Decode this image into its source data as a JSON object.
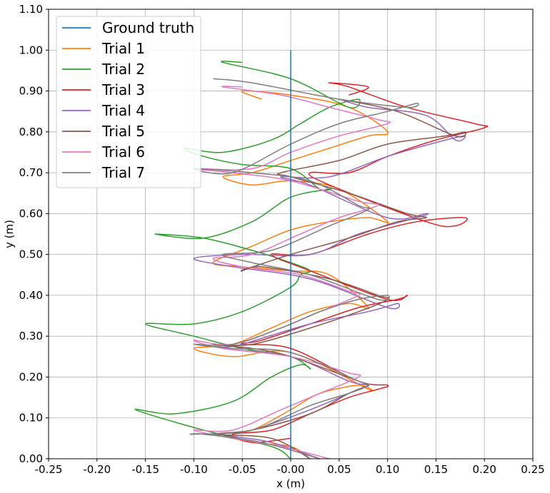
{
  "chart_data": {
    "type": "line",
    "title": "",
    "xlabel": "x (m)",
    "ylabel": "y (m)",
    "xlim": [
      -0.25,
      0.25
    ],
    "ylim": [
      0.0,
      1.1
    ],
    "xticks": [
      "-0.25",
      "-0.20",
      "-0.15",
      "-0.10",
      "-0.05",
      "-0.00",
      "0.05",
      "0.10",
      "0.15",
      "0.20",
      "0.25"
    ],
    "yticks": [
      "0.00",
      "0.10",
      "0.20",
      "0.30",
      "0.40",
      "0.50",
      "0.60",
      "0.70",
      "0.80",
      "0.90",
      "1.00",
      "1.10"
    ],
    "grid": true,
    "legend_position": "upper-left",
    "series": [
      {
        "name": "Ground truth",
        "color": "#1f77b4",
        "x": [
          0.0,
          0.0
        ],
        "y": [
          0.0,
          1.0
        ]
      },
      {
        "name": "Trial 1",
        "color": "#ff7f0e",
        "x": [
          0.02,
          0.0,
          -0.04,
          -0.07,
          -0.04,
          0.0,
          0.03,
          0.07,
          0.08,
          0.0,
          -0.06,
          -0.1,
          -0.06,
          -0.02,
          0.02,
          0.06,
          0.08,
          0.04,
          0.0,
          -0.05,
          -0.08,
          -0.04,
          0.0,
          0.04,
          0.08,
          0.1,
          0.05,
          0.0,
          -0.04,
          -0.07,
          -0.04,
          0.0,
          0.04,
          0.08,
          0.1,
          0.06,
          0.0,
          -0.05,
          -0.03
        ],
        "y": [
          0.0,
          0.03,
          0.04,
          0.06,
          0.07,
          0.12,
          0.16,
          0.18,
          0.17,
          0.26,
          0.25,
          0.27,
          0.28,
          0.32,
          0.36,
          0.38,
          0.37,
          0.45,
          0.46,
          0.47,
          0.48,
          0.52,
          0.56,
          0.58,
          0.59,
          0.58,
          0.66,
          0.68,
          0.67,
          0.69,
          0.7,
          0.73,
          0.76,
          0.79,
          0.8,
          0.86,
          0.89,
          0.9,
          0.88
        ]
      },
      {
        "name": "Trial 2",
        "color": "#2ca02c",
        "x": [
          0.0,
          -0.02,
          -0.09,
          -0.16,
          -0.12,
          -0.06,
          -0.02,
          0.01,
          0.02,
          0.0,
          -0.05,
          -0.1,
          -0.15,
          -0.1,
          -0.05,
          0.0,
          0.01,
          0.02,
          0.0,
          -0.04,
          -0.09,
          -0.14,
          -0.09,
          -0.04,
          0.0,
          0.04,
          0.03,
          0.0,
          -0.05,
          -0.09,
          -0.11,
          -0.07,
          -0.02,
          0.01,
          0.04,
          0.07,
          0.06,
          0.0,
          -0.07,
          -0.05
        ],
        "y": [
          0.0,
          0.03,
          0.07,
          0.12,
          0.11,
          0.14,
          0.2,
          0.23,
          0.22,
          0.25,
          0.27,
          0.3,
          0.33,
          0.33,
          0.36,
          0.42,
          0.45,
          0.46,
          0.48,
          0.51,
          0.54,
          0.55,
          0.54,
          0.58,
          0.64,
          0.66,
          0.66,
          0.71,
          0.72,
          0.74,
          0.76,
          0.75,
          0.78,
          0.82,
          0.86,
          0.88,
          0.86,
          0.93,
          0.97,
          0.97
        ]
      },
      {
        "name": "Trial 3",
        "color": "#d62728",
        "x": [
          0.0,
          -0.04,
          -0.06,
          -0.02,
          0.02,
          0.06,
          0.09,
          0.1,
          0.07,
          0.0,
          -0.05,
          -0.03,
          0.02,
          0.07,
          0.11,
          0.12,
          0.1,
          0.02,
          -0.02,
          0.02,
          0.08,
          0.13,
          0.18,
          0.17,
          0.14,
          0.04,
          0.02,
          0.06,
          0.1,
          0.15,
          0.2,
          0.19,
          0.12,
          0.06,
          0.04,
          0.08,
          0.06
        ],
        "y": [
          0.05,
          0.04,
          0.06,
          0.07,
          0.11,
          0.15,
          0.17,
          0.18,
          0.19,
          0.27,
          0.28,
          0.29,
          0.33,
          0.37,
          0.39,
          0.4,
          0.39,
          0.46,
          0.5,
          0.5,
          0.55,
          0.58,
          0.59,
          0.57,
          0.58,
          0.67,
          0.7,
          0.7,
          0.74,
          0.78,
          0.81,
          0.82,
          0.86,
          0.91,
          0.92,
          0.91,
          0.89
        ]
      },
      {
        "name": "Trial 4",
        "color": "#9467bd",
        "x": [
          0.03,
          -0.02,
          -0.07,
          -0.04,
          0.02,
          0.07,
          0.08,
          0.06,
          0.0,
          -0.07,
          -0.05,
          0.02,
          0.08,
          0.11,
          0.1,
          0.02,
          -0.06,
          -0.1,
          -0.05,
          0.02,
          0.07,
          0.13,
          0.14,
          0.1,
          0.02,
          -0.01,
          0.04,
          0.1,
          0.16,
          0.18,
          0.17,
          0.14,
          0.08,
          0.05
        ],
        "y": [
          0.0,
          0.04,
          0.06,
          0.07,
          0.12,
          0.17,
          0.18,
          0.19,
          0.25,
          0.27,
          0.28,
          0.33,
          0.36,
          0.38,
          0.37,
          0.44,
          0.47,
          0.49,
          0.5,
          0.5,
          0.55,
          0.59,
          0.6,
          0.59,
          0.67,
          0.69,
          0.69,
          0.74,
          0.78,
          0.79,
          0.78,
          0.84,
          0.86,
          0.88
        ]
      },
      {
        "name": "Trial 5",
        "color": "#8c564b",
        "x": [
          0.02,
          -0.02,
          -0.08,
          -0.04,
          0.02,
          0.06,
          0.08,
          0.07,
          0.0,
          -0.04,
          -0.08,
          -0.04,
          0.02,
          0.07,
          0.1,
          0.09,
          0.04,
          -0.03,
          -0.05,
          0.0,
          0.06,
          0.11,
          0.14,
          0.12,
          0.06,
          0.0,
          -0.01,
          0.05,
          0.1,
          0.16,
          0.18,
          0.17,
          0.11,
          0.05
        ],
        "y": [
          0.0,
          0.05,
          0.06,
          0.07,
          0.11,
          0.16,
          0.18,
          0.19,
          0.25,
          0.27,
          0.28,
          0.28,
          0.32,
          0.36,
          0.39,
          0.4,
          0.44,
          0.47,
          0.46,
          0.5,
          0.54,
          0.58,
          0.59,
          0.6,
          0.65,
          0.69,
          0.7,
          0.73,
          0.77,
          0.79,
          0.8,
          0.79,
          0.85,
          0.88
        ]
      },
      {
        "name": "Trial 6",
        "color": "#e377c2",
        "x": [
          0.04,
          -0.01,
          -0.06,
          -0.1,
          -0.06,
          -0.01,
          0.03,
          0.07,
          0.06,
          0.0,
          -0.07,
          -0.1,
          -0.06,
          -0.01,
          0.03,
          0.07,
          0.06,
          0.01,
          -0.05,
          -0.08,
          -0.04,
          0.01,
          0.05,
          0.09,
          0.07,
          0.0,
          -0.06,
          -0.1,
          -0.04,
          0.0,
          0.05,
          0.1,
          0.09,
          0.04,
          -0.01,
          -0.07,
          -0.05
        ],
        "y": [
          0.0,
          0.03,
          0.05,
          0.07,
          0.07,
          0.12,
          0.16,
          0.2,
          0.21,
          0.25,
          0.27,
          0.29,
          0.28,
          0.32,
          0.36,
          0.4,
          0.41,
          0.45,
          0.47,
          0.49,
          0.5,
          0.55,
          0.59,
          0.62,
          0.63,
          0.68,
          0.7,
          0.71,
          0.71,
          0.75,
          0.79,
          0.82,
          0.83,
          0.86,
          0.89,
          0.91,
          0.91
        ]
      },
      {
        "name": "Trial 7",
        "color": "#7f7f7f",
        "x": [
          0.03,
          -0.03,
          -0.09,
          -0.1,
          -0.04,
          0.02,
          0.06,
          0.08,
          0.07,
          0.0,
          -0.06,
          -0.1,
          -0.06,
          -0.01,
          0.03,
          0.07,
          0.1,
          0.09,
          0.02,
          -0.04,
          -0.07,
          -0.02,
          0.04,
          0.08,
          0.07,
          0.02,
          -0.04,
          -0.1,
          -0.06,
          0.0,
          0.05,
          0.1,
          0.13,
          0.12,
          0.05,
          -0.04,
          -0.08
        ],
        "y": [
          0.0,
          0.04,
          0.06,
          0.06,
          0.07,
          0.13,
          0.16,
          0.18,
          0.19,
          0.26,
          0.27,
          0.28,
          0.28,
          0.32,
          0.36,
          0.39,
          0.4,
          0.39,
          0.45,
          0.48,
          0.5,
          0.51,
          0.57,
          0.61,
          0.62,
          0.68,
          0.7,
          0.71,
          0.7,
          0.77,
          0.82,
          0.85,
          0.87,
          0.86,
          0.88,
          0.92,
          0.93
        ]
      }
    ]
  }
}
